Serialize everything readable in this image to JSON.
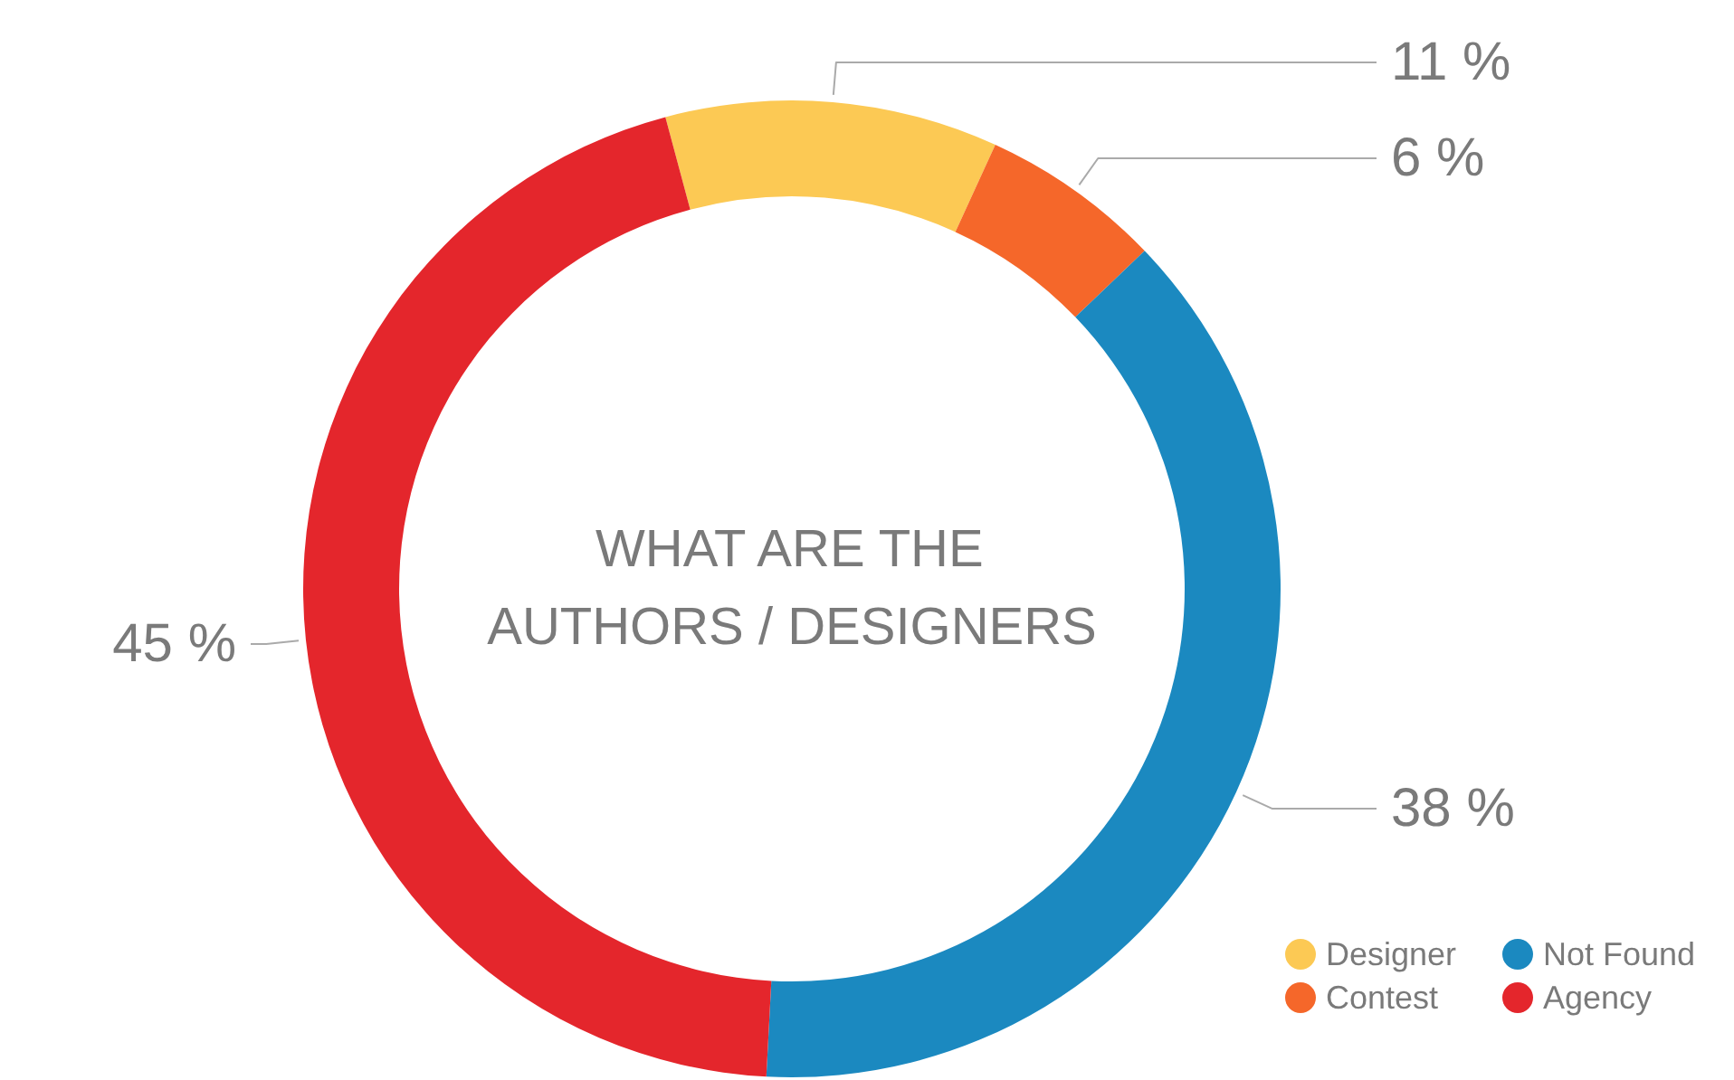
{
  "chart_data": {
    "type": "donut",
    "title": "WHAT ARE THE\nAUTHORS / DESIGNERS",
    "categories": [
      "Designer",
      "Contest",
      "Not Found",
      "Agency"
    ],
    "values": [
      11,
      6,
      38,
      45
    ],
    "colors": [
      "#fcc954",
      "#f5672a",
      "#1b89c0",
      "#e4262c"
    ],
    "value_labels": [
      "11 %",
      "6 %",
      "38 %",
      "45 %"
    ],
    "legend": "bottom right"
  }
}
